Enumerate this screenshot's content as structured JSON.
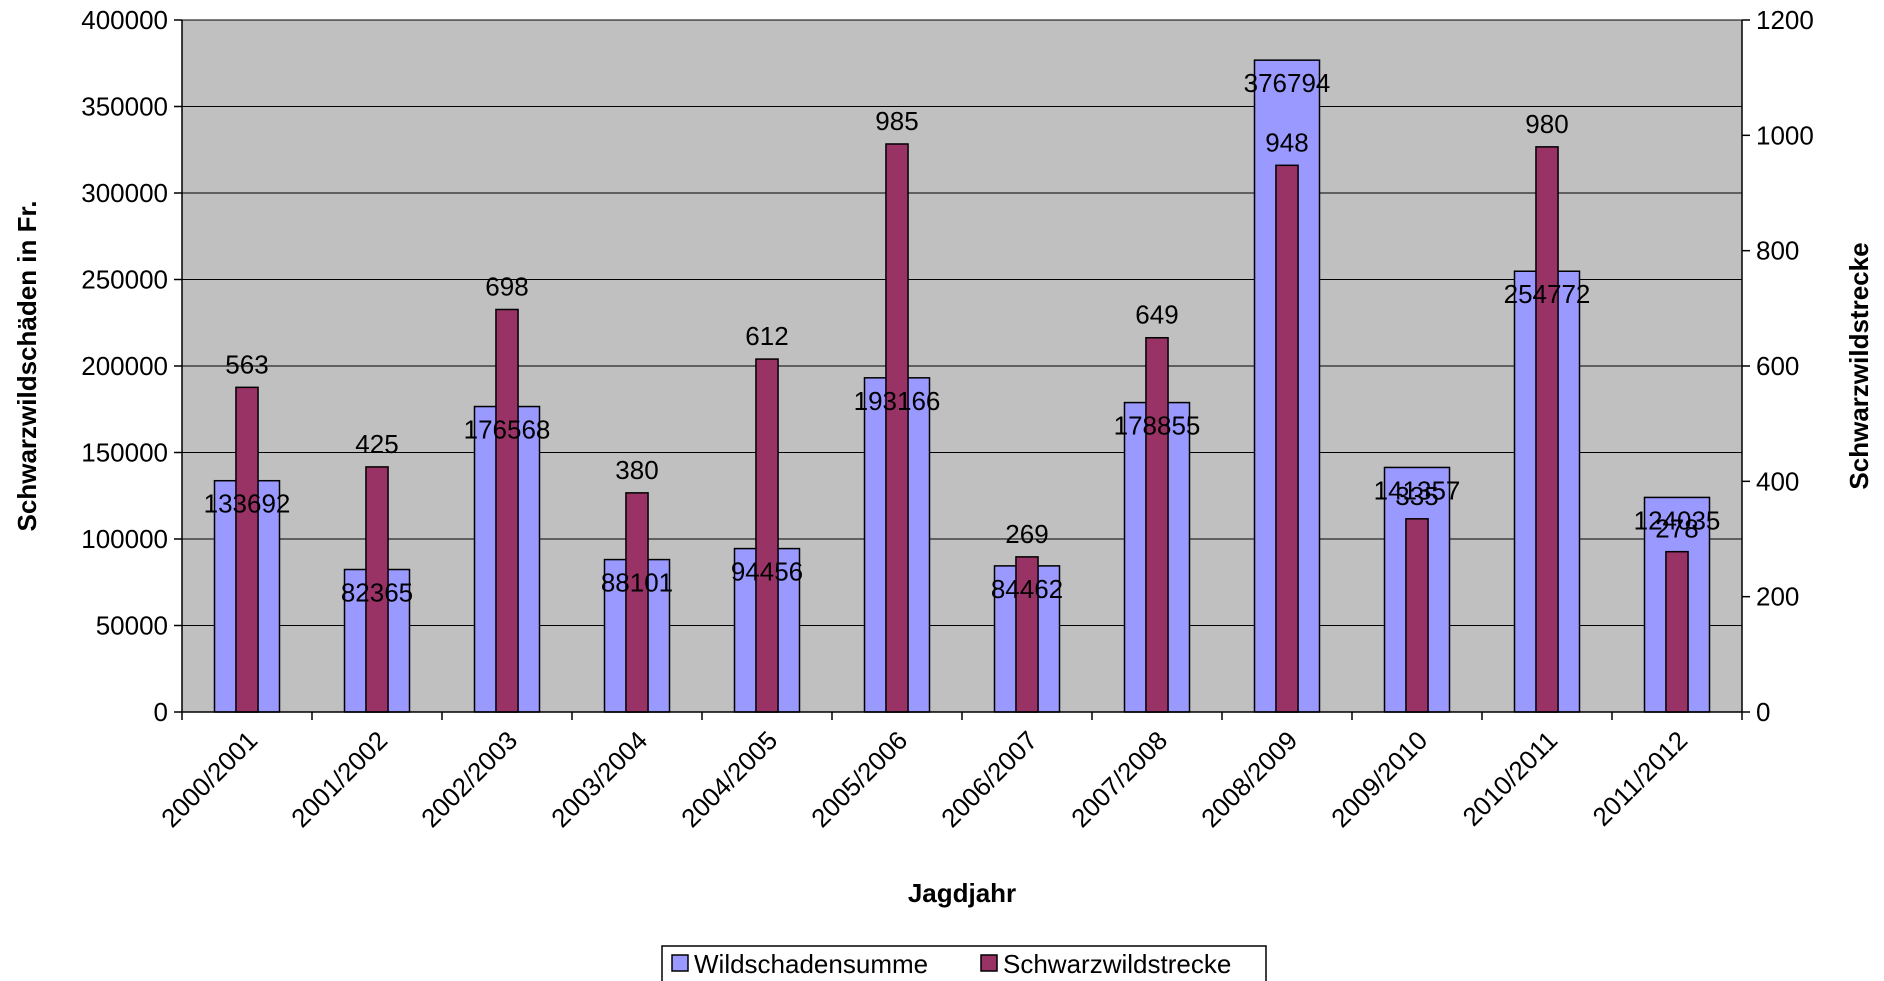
{
  "chart_data": {
    "type": "bar",
    "categories": [
      "2000/2001",
      "2001/2002",
      "2002/2003",
      "2003/2004",
      "2004/2005",
      "2005/2006",
      "2006/2007",
      "2007/2008",
      "2008/2009",
      "2009/2010",
      "2010/2011",
      "2011/2012"
    ],
    "series": [
      {
        "name": "Wildschadensumme",
        "axis": "left",
        "color": "#9999ff",
        "values": [
          133692,
          82365,
          176568,
          88101,
          94456,
          193166,
          84462,
          178855,
          376794,
          141357,
          254772,
          124035
        ],
        "labels": [
          "133692",
          "82365",
          "176568",
          "88101",
          "94456",
          "193166",
          "84462",
          "178855",
          "376794",
          "141357",
          "254772",
          "124035"
        ]
      },
      {
        "name": "Schwarzwildstrecke",
        "axis": "right",
        "color": "#993366",
        "values": [
          563,
          425,
          698,
          380,
          612,
          985,
          269,
          649,
          948,
          335,
          980,
          278
        ],
        "labels": [
          "563",
          "425",
          "698",
          "380",
          "612",
          "985",
          "269",
          "649",
          "948",
          "335",
          "980",
          "278"
        ]
      }
    ],
    "xlabel": "Jagdjahr",
    "ylabel": "Schwarzwildschäden in Fr.",
    "y2label": "Schwarzwildstrecke",
    "ylim": [
      0,
      400000
    ],
    "y2lim": [
      0,
      1200
    ],
    "yticks": [
      "0",
      "50000",
      "100000",
      "150000",
      "200000",
      "250000",
      "300000",
      "350000",
      "400000"
    ],
    "y2ticks": [
      "0",
      "200",
      "400",
      "600",
      "800",
      "1000",
      "1200"
    ],
    "grid": true,
    "plot_background": "#c0c0c0",
    "legend_position": "bottom"
  }
}
